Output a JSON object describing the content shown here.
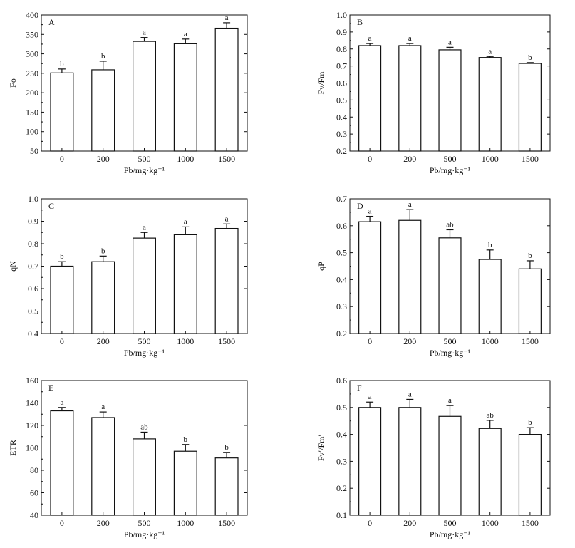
{
  "figure": {
    "background": "#ffffff",
    "ink": "#111111",
    "bar_fill": "#ffffff"
  },
  "chart_data": [
    {
      "panel": "A",
      "type": "bar",
      "categories": [
        "0",
        "200",
        "500",
        "1000",
        "1500"
      ],
      "values": [
        251,
        259,
        332,
        326,
        366
      ],
      "errors": [
        10,
        22,
        10,
        12,
        14
      ],
      "labels": [
        "b",
        "b",
        "a",
        "a",
        "a"
      ],
      "xlabel": "Pb/mg·kg⁻¹",
      "ylabel": "Fo",
      "ylim": [
        50,
        400
      ],
      "yticks": [
        "50",
        "100",
        "150",
        "200",
        "250",
        "300",
        "350",
        "400"
      ]
    },
    {
      "panel": "B",
      "type": "bar",
      "categories": [
        "0",
        "200",
        "500",
        "1000",
        "1500"
      ],
      "values": [
        0.82,
        0.82,
        0.795,
        0.75,
        0.715
      ],
      "errors": [
        0.012,
        0.012,
        0.015,
        0.006,
        0.005
      ],
      "labels": [
        "a",
        "a",
        "a",
        "a",
        "b"
      ],
      "xlabel": "Pb/mg·kg⁻¹",
      "ylabel": "Fv/Fm",
      "ylim": [
        0.2,
        1.0
      ],
      "yticks": [
        "0.2",
        "0.3",
        "0.4",
        "0.5",
        "0.6",
        "0.7",
        "0.8",
        "0.9",
        "1.0"
      ]
    },
    {
      "panel": "C",
      "type": "bar",
      "categories": [
        "0",
        "200",
        "500",
        "1000",
        "1500"
      ],
      "values": [
        0.7,
        0.72,
        0.825,
        0.84,
        0.868
      ],
      "errors": [
        0.02,
        0.025,
        0.025,
        0.035,
        0.02
      ],
      "labels": [
        "b",
        "b",
        "a",
        "a",
        "a"
      ],
      "xlabel": "Pb/mg·kg⁻¹",
      "ylabel": "qN",
      "ylim": [
        0.4,
        1.0
      ],
      "yticks": [
        "0.4",
        "0.5",
        "0.6",
        "0.7",
        "0.8",
        "0.9",
        "1.0"
      ]
    },
    {
      "panel": "D",
      "type": "bar",
      "categories": [
        "0",
        "200",
        "500",
        "1000",
        "1500"
      ],
      "values": [
        0.615,
        0.62,
        0.555,
        0.475,
        0.44
      ],
      "errors": [
        0.02,
        0.04,
        0.03,
        0.035,
        0.03
      ],
      "labels": [
        "a",
        "a",
        "ab",
        "b",
        "b"
      ],
      "xlabel": "Pb/mg·kg⁻¹",
      "ylabel": "qP",
      "ylim": [
        0.2,
        0.7
      ],
      "yticks": [
        "0.2",
        "0.3",
        "0.4",
        "0.5",
        "0.6",
        "0.7"
      ]
    },
    {
      "panel": "E",
      "type": "bar",
      "categories": [
        "0",
        "200",
        "500",
        "1000",
        "1500"
      ],
      "values": [
        133,
        127,
        108,
        97,
        91
      ],
      "errors": [
        3,
        5,
        6,
        6,
        5
      ],
      "labels": [
        "a",
        "a",
        "ab",
        "b",
        "b"
      ],
      "xlabel": "Pb/mg·kg⁻¹",
      "ylabel": "ETR",
      "ylim": [
        40,
        160
      ],
      "yticks": [
        "40",
        "60",
        "80",
        "100",
        "120",
        "140",
        "160"
      ]
    },
    {
      "panel": "F",
      "type": "bar",
      "categories": [
        "0",
        "200",
        "500",
        "1000",
        "1500"
      ],
      "values": [
        0.5,
        0.5,
        0.467,
        0.422,
        0.4
      ],
      "errors": [
        0.02,
        0.03,
        0.04,
        0.03,
        0.025
      ],
      "labels": [
        "a",
        "a",
        "a",
        "ab",
        "b"
      ],
      "xlabel": "Pb/mg·kg⁻¹",
      "ylabel": "Fv′/Fm′",
      "ylim": [
        0.1,
        0.6
      ],
      "yticks": [
        "0.1",
        "0.2",
        "0.3",
        "0.4",
        "0.5",
        "0.6"
      ]
    }
  ]
}
